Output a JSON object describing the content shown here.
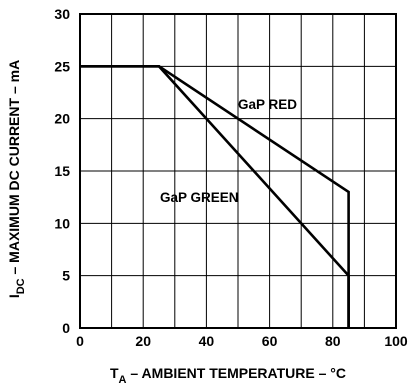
{
  "chart_data": {
    "type": "line",
    "xlabel_main": "T",
    "xlabel_sub": "A",
    "xlabel_rest": " – AMBIENT TEMPERATURE – °C",
    "ylabel_main": "I",
    "ylabel_sub": "DC",
    "ylabel_rest": " – MAXIMUM DC CURRENT – mA",
    "xlim": [
      0,
      100
    ],
    "ylim": [
      0,
      30
    ],
    "x_ticks": [
      "0",
      "20",
      "40",
      "60",
      "80",
      "100"
    ],
    "y_ticks": [
      "0",
      "5",
      "10",
      "15",
      "20",
      "25",
      "30"
    ],
    "grid": true,
    "series": [
      {
        "name": "GaP RED",
        "x": [
          0,
          25,
          85,
          85
        ],
        "y": [
          25,
          25,
          13,
          0
        ]
      },
      {
        "name": "GaP GREEN",
        "x": [
          0,
          25,
          85,
          85
        ],
        "y": [
          25,
          25,
          5,
          0
        ]
      }
    ]
  }
}
